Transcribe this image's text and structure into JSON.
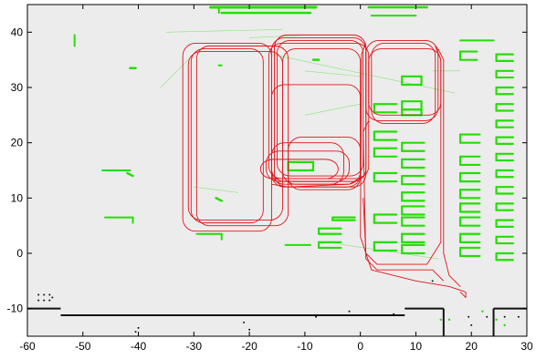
{
  "chart_data": {
    "type": "scatter",
    "title": "",
    "xlabel": "",
    "ylabel": "",
    "xlim": [
      -60,
      30
    ],
    "ylim": [
      -15,
      45
    ],
    "x_ticks": [
      -60,
      -50,
      -40,
      -30,
      -20,
      -10,
      0,
      10,
      20,
      30
    ],
    "y_ticks": [
      -10,
      0,
      10,
      20,
      30,
      40
    ],
    "x_tick_labels": [
      "-60",
      "-50",
      "-40",
      "-30",
      "-20",
      "-10",
      "0",
      "10",
      "20",
      "30"
    ],
    "y_tick_labels": [
      "-10",
      "0",
      "10",
      "20",
      "30",
      "40"
    ],
    "grid": false,
    "legend": "none",
    "colors": {
      "background": "#ececec",
      "trajectory": "#e0141a",
      "green_map": "#22e000",
      "black_map": "#111111"
    },
    "series": [
      {
        "kind": "trajectory",
        "loops": [
          [
            -32,
            38,
            -16,
            4
          ],
          [
            -30.5,
            37,
            -17.5,
            5.5
          ],
          [
            -31,
            36.5,
            -14,
            6
          ],
          [
            -29.5,
            37.5,
            -13,
            5
          ],
          [
            -16,
            39,
            1,
            13
          ],
          [
            -15,
            38.5,
            0.5,
            14
          ],
          [
            -16.5,
            38,
            1.5,
            13.5
          ],
          [
            -14,
            37,
            0,
            12.5
          ],
          [
            -15.5,
            39.5,
            1,
            12
          ],
          [
            -17,
            18.5,
            -2,
            13
          ],
          [
            -16,
            20,
            -3,
            12.5
          ],
          [
            -18,
            17,
            -4,
            13.5
          ],
          [
            -16,
            30.5,
            0,
            12
          ],
          [
            1,
            38.5,
            14,
            24
          ],
          [
            2,
            38,
            13.5,
            23.5
          ],
          [
            1.5,
            37,
            14.5,
            25
          ],
          [
            -13,
            21,
            0,
            11.5
          ]
        ]
      },
      {
        "kind": "walls",
        "segments": [
          [
            -60,
            -10,
            -54,
            -10
          ],
          [
            -54,
            -11.2,
            8,
            -11.2
          ],
          [
            8,
            -10,
            15,
            -10
          ],
          [
            15,
            -10,
            15,
            -15
          ],
          [
            24,
            -10,
            30,
            -10
          ],
          [
            24,
            -10,
            24,
            -15
          ]
        ]
      }
    ]
  }
}
